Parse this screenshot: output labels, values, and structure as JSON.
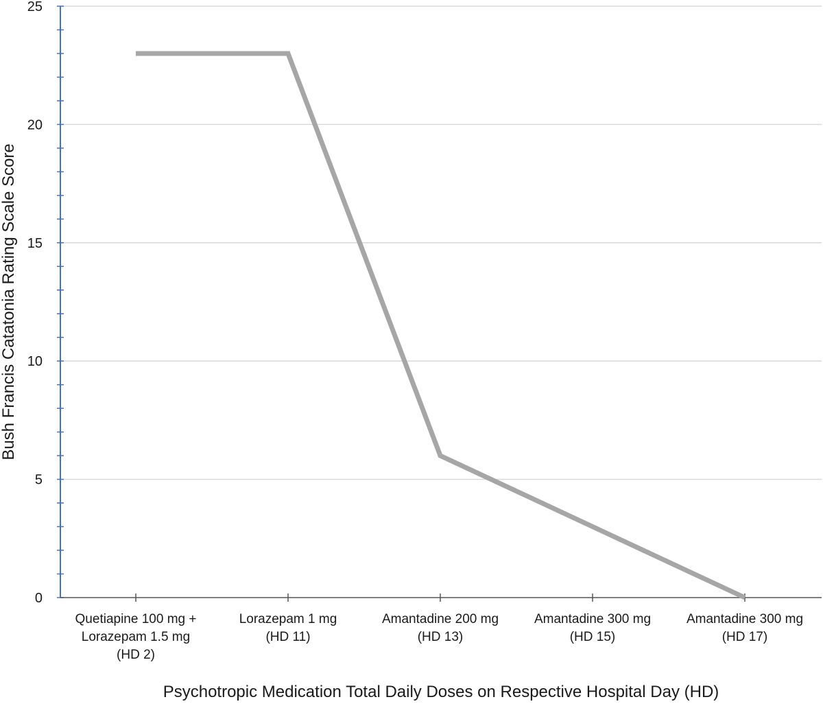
{
  "chart_data": {
    "type": "line",
    "title": "",
    "xlabel": "Psychotropic Medication Total Daily Doses on Respective Hospital Day (HD)",
    "ylabel": "Bush Francis Catatonia Rating Scale Score",
    "categories": [
      [
        "Quetiapine 100 mg +",
        "Lorazepam 1.5 mg",
        "(HD 2)"
      ],
      [
        "Lorazepam 1 mg",
        "(HD 11)"
      ],
      [
        "Amantadine 200 mg",
        "(HD 13)"
      ],
      [
        "Amantadine 300 mg",
        "(HD 15)"
      ],
      [
        "Amantadine 300 mg",
        "(HD 17)"
      ]
    ],
    "values": [
      23,
      23,
      6,
      3,
      0
    ],
    "ylim": [
      0,
      25
    ],
    "yticks": [
      0,
      5,
      10,
      15,
      20,
      25
    ],
    "y_minor_step": 1,
    "grid": true,
    "legend": "none",
    "colors": {
      "line": "#a6a6a6",
      "grid": "#d9d9d9",
      "y_axis": "#4472c4",
      "x_axis": "#555555"
    }
  }
}
